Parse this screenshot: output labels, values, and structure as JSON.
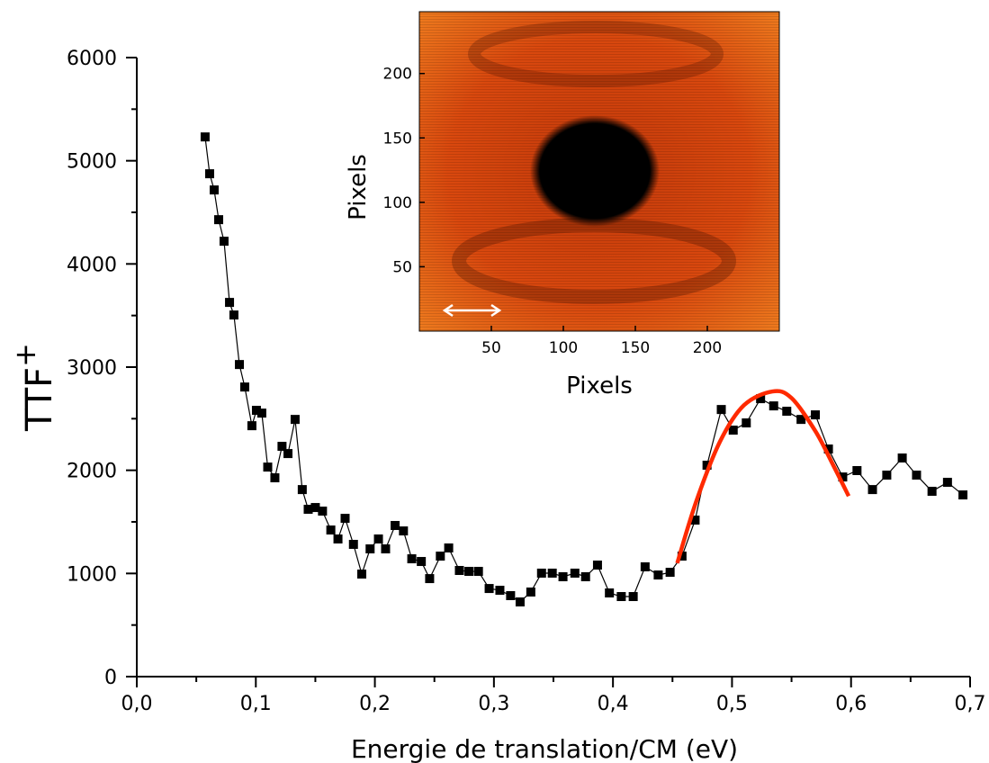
{
  "chart_data": [
    {
      "type": "line",
      "x_label": "Energie de translation/CM (eV)",
      "y_label": "TTF",
      "y_label_sup": "+",
      "xlim": [
        0,
        0.7
      ],
      "ylim": [
        0,
        6000
      ],
      "xticks": [
        {
          "value": 0,
          "label": "0,0"
        },
        {
          "value": 0.1,
          "label": "0,1"
        },
        {
          "value": 0.2,
          "label": "0,2"
        },
        {
          "value": 0.3,
          "label": "0,3"
        },
        {
          "value": 0.4,
          "label": "0,4"
        },
        {
          "value": 0.5,
          "label": "0,5"
        },
        {
          "value": 0.6,
          "label": "0,6"
        },
        {
          "value": 0.7,
          "label": "0,7"
        }
      ],
      "yticks": [
        0,
        1000,
        2000,
        3000,
        4000,
        5000,
        6000
      ],
      "series": [
        {
          "color": "#000000",
          "markers": true,
          "x": [
            0.0574,
            0.0612,
            0.065,
            0.0688,
            0.0733,
            0.0779,
            0.0816,
            0.0862,
            0.0907,
            0.0967,
            0.1005,
            0.105,
            0.11,
            0.116,
            0.122,
            0.127,
            0.133,
            0.139,
            0.144,
            0.15,
            0.156,
            0.163,
            0.169,
            0.175,
            0.182,
            0.189,
            0.196,
            0.203,
            0.209,
            0.217,
            0.224,
            0.231,
            0.239,
            0.246,
            0.255,
            0.262,
            0.271,
            0.279,
            0.287,
            0.296,
            0.305,
            0.314,
            0.322,
            0.331,
            0.34,
            0.349,
            0.358,
            0.368,
            0.377,
            0.387,
            0.397,
            0.407,
            0.417,
            0.427,
            0.438,
            0.448,
            0.458,
            0.469,
            0.479,
            0.491,
            0.501,
            0.512,
            0.524,
            0.535,
            0.546,
            0.558,
            0.57,
            0.581,
            0.593,
            0.605,
            0.618,
            0.63,
            0.643,
            0.655,
            0.668,
            0.681,
            0.694
          ],
          "values": [
            5231,
            4874,
            4717,
            4429,
            4220,
            3627,
            3505,
            3025,
            2807,
            2432,
            2581,
            2554,
            2031,
            1927,
            2232,
            2162,
            2493,
            1813,
            1622,
            1639,
            1604,
            1421,
            1334,
            1534,
            1282,
            994,
            1238,
            1334,
            1238,
            1465,
            1412,
            1142,
            1116,
            950,
            1168,
            1247,
            1029,
            1020,
            1020,
            854,
            837,
            785,
            724,
            820,
            1003,
            1003,
            968,
            1003,
            968,
            1081,
            811,
            776,
            776,
            1064,
            985,
            1011,
            1168,
            1517,
            2049,
            2589,
            2389,
            2459,
            2694,
            2624,
            2572,
            2493,
            2537,
            2206,
            1935,
            1997,
            1813,
            1953,
            2119,
            1953,
            1796,
            1883,
            1761
          ]
        },
        {
          "color": "#ff2a00",
          "markers": false,
          "x": [
            0.454,
            0.47,
            0.49,
            0.51,
            0.534,
            0.55,
            0.57,
            0.585,
            0.598
          ],
          "values": [
            1100,
            1700,
            2280,
            2630,
            2764,
            2700,
            2380,
            2050,
            1750
          ]
        }
      ]
    },
    {
      "type": "image",
      "x_label": "Pixels",
      "y_label": "Pixels",
      "xlim": [
        0,
        250
      ],
      "ylim": [
        0,
        248
      ],
      "xticks": [
        50,
        100,
        150,
        200
      ],
      "yticks": [
        50,
        100,
        150,
        200
      ]
    }
  ]
}
